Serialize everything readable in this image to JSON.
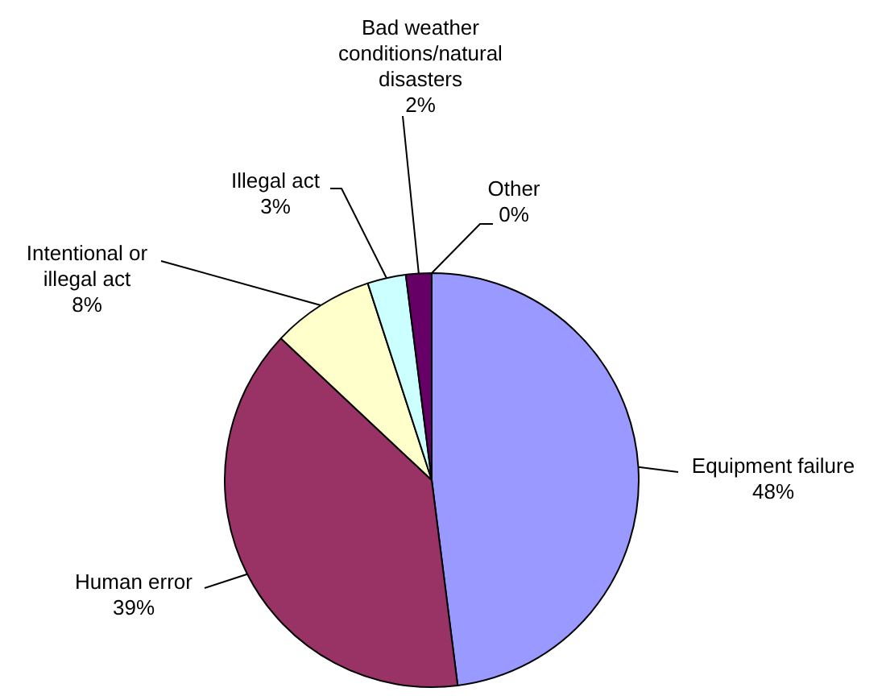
{
  "chart_data": {
    "type": "pie",
    "categories": [
      "Equipment failure",
      "Human error",
      "Intentional or illegal act",
      "Illegal act",
      "Bad weather conditions/natural disasters",
      "Other"
    ],
    "values": [
      48,
      39,
      8,
      3,
      2,
      0
    ],
    "colors": [
      "#9999ff",
      "#993366",
      "#ffffcc",
      "#ccffff",
      "#660066",
      "#ff8080"
    ],
    "value_labels": [
      "48%",
      "39%",
      "8%",
      "3%",
      "2%",
      "0%"
    ]
  }
}
